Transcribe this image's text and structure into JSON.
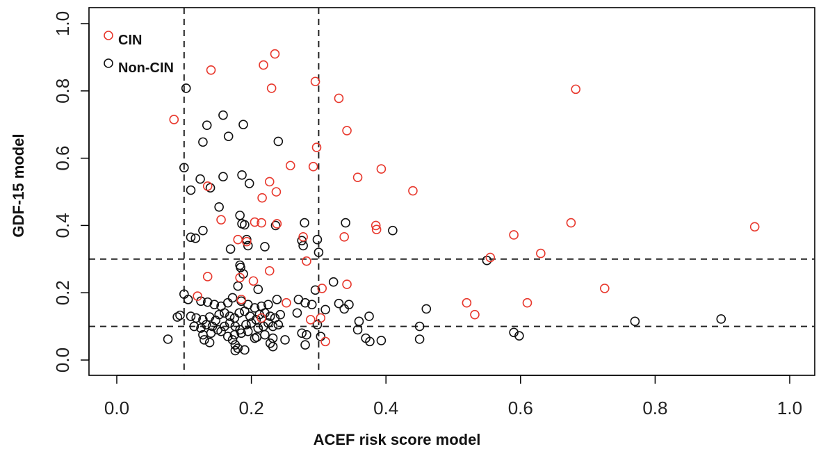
{
  "chart_data": {
    "type": "scatter",
    "xlabel": "ACEF risk score model",
    "ylabel": "GDF-15 model",
    "xlim": [
      -0.02,
      1.04
    ],
    "ylim": [
      -0.05,
      1.04
    ],
    "x_ticks": [
      "0.0",
      "0.2",
      "0.4",
      "0.6",
      "0.8",
      "1.0"
    ],
    "y_ticks": [
      "0.0",
      "0.2",
      "0.4",
      "0.6",
      "0.8",
      "1.0"
    ],
    "grid": false,
    "legend_position": "top-left",
    "reference_lines": {
      "vertical": [
        0.1,
        0.3
      ],
      "horizontal": [
        0.1,
        0.3
      ]
    },
    "series": [
      {
        "name": "CIN",
        "color": "#e8392e",
        "points": [
          [
            0.085,
            0.715
          ],
          [
            0.14,
            0.862
          ],
          [
            0.218,
            0.877
          ],
          [
            0.235,
            0.91
          ],
          [
            0.23,
            0.808
          ],
          [
            0.295,
            0.828
          ],
          [
            0.33,
            0.778
          ],
          [
            0.342,
            0.682
          ],
          [
            0.682,
            0.805
          ],
          [
            0.297,
            0.632
          ],
          [
            0.258,
            0.578
          ],
          [
            0.292,
            0.575
          ],
          [
            0.393,
            0.568
          ],
          [
            0.358,
            0.543
          ],
          [
            0.227,
            0.53
          ],
          [
            0.135,
            0.517
          ],
          [
            0.237,
            0.5
          ],
          [
            0.44,
            0.503
          ],
          [
            0.216,
            0.482
          ],
          [
            0.155,
            0.417
          ],
          [
            0.205,
            0.41
          ],
          [
            0.215,
            0.408
          ],
          [
            0.238,
            0.405
          ],
          [
            0.385,
            0.4
          ],
          [
            0.386,
            0.388
          ],
          [
            0.675,
            0.408
          ],
          [
            0.948,
            0.396
          ],
          [
            0.59,
            0.372
          ],
          [
            0.277,
            0.366
          ],
          [
            0.338,
            0.366
          ],
          [
            0.18,
            0.358
          ],
          [
            0.193,
            0.352
          ],
          [
            0.63,
            0.317
          ],
          [
            0.555,
            0.305
          ],
          [
            0.282,
            0.294
          ],
          [
            0.227,
            0.265
          ],
          [
            0.135,
            0.248
          ],
          [
            0.183,
            0.245
          ],
          [
            0.203,
            0.235
          ],
          [
            0.342,
            0.225
          ],
          [
            0.305,
            0.213
          ],
          [
            0.725,
            0.213
          ],
          [
            0.185,
            0.18
          ],
          [
            0.12,
            0.19
          ],
          [
            0.252,
            0.17
          ],
          [
            0.52,
            0.17
          ],
          [
            0.61,
            0.17
          ],
          [
            0.532,
            0.135
          ],
          [
            0.215,
            0.125
          ],
          [
            0.303,
            0.125
          ],
          [
            0.288,
            0.12
          ],
          [
            0.31,
            0.055
          ]
        ]
      },
      {
        "name": "Non-CIN",
        "color": "#111111",
        "points": [
          [
            0.103,
            0.808
          ],
          [
            0.158,
            0.728
          ],
          [
            0.188,
            0.7
          ],
          [
            0.134,
            0.698
          ],
          [
            0.166,
            0.665
          ],
          [
            0.128,
            0.648
          ],
          [
            0.24,
            0.65
          ],
          [
            0.1,
            0.572
          ],
          [
            0.186,
            0.55
          ],
          [
            0.158,
            0.545
          ],
          [
            0.124,
            0.538
          ],
          [
            0.197,
            0.525
          ],
          [
            0.11,
            0.505
          ],
          [
            0.139,
            0.512
          ],
          [
            0.152,
            0.455
          ],
          [
            0.183,
            0.43
          ],
          [
            0.236,
            0.4
          ],
          [
            0.279,
            0.408
          ],
          [
            0.34,
            0.408
          ],
          [
            0.41,
            0.385
          ],
          [
            0.128,
            0.385
          ],
          [
            0.19,
            0.402
          ],
          [
            0.186,
            0.405
          ],
          [
            0.11,
            0.365
          ],
          [
            0.117,
            0.362
          ],
          [
            0.193,
            0.358
          ],
          [
            0.275,
            0.355
          ],
          [
            0.298,
            0.358
          ],
          [
            0.195,
            0.34
          ],
          [
            0.169,
            0.33
          ],
          [
            0.277,
            0.34
          ],
          [
            0.22,
            0.337
          ],
          [
            0.3,
            0.32
          ],
          [
            0.55,
            0.296
          ],
          [
            0.183,
            0.282
          ],
          [
            0.184,
            0.275
          ],
          [
            0.188,
            0.256
          ],
          [
            0.322,
            0.232
          ],
          [
            0.295,
            0.208
          ],
          [
            0.18,
            0.22
          ],
          [
            0.21,
            0.21
          ],
          [
            0.1,
            0.196
          ],
          [
            0.106,
            0.18
          ],
          [
            0.125,
            0.175
          ],
          [
            0.135,
            0.172
          ],
          [
            0.145,
            0.165
          ],
          [
            0.155,
            0.16
          ],
          [
            0.165,
            0.17
          ],
          [
            0.172,
            0.185
          ],
          [
            0.185,
            0.175
          ],
          [
            0.195,
            0.165
          ],
          [
            0.205,
            0.155
          ],
          [
            0.215,
            0.16
          ],
          [
            0.225,
            0.165
          ],
          [
            0.238,
            0.18
          ],
          [
            0.27,
            0.18
          ],
          [
            0.28,
            0.17
          ],
          [
            0.29,
            0.165
          ],
          [
            0.33,
            0.168
          ],
          [
            0.338,
            0.152
          ],
          [
            0.345,
            0.165
          ],
          [
            0.46,
            0.152
          ],
          [
            0.375,
            0.13
          ],
          [
            0.36,
            0.115
          ],
          [
            0.45,
            0.1
          ],
          [
            0.77,
            0.115
          ],
          [
            0.898,
            0.122
          ],
          [
            0.09,
            0.128
          ],
          [
            0.094,
            0.133
          ],
          [
            0.11,
            0.13
          ],
          [
            0.118,
            0.125
          ],
          [
            0.128,
            0.12
          ],
          [
            0.138,
            0.128
          ],
          [
            0.147,
            0.118
          ],
          [
            0.152,
            0.135
          ],
          [
            0.16,
            0.14
          ],
          [
            0.168,
            0.13
          ],
          [
            0.175,
            0.125
          ],
          [
            0.182,
            0.14
          ],
          [
            0.19,
            0.145
          ],
          [
            0.198,
            0.13
          ],
          [
            0.207,
            0.12
          ],
          [
            0.212,
            0.135
          ],
          [
            0.22,
            0.14
          ],
          [
            0.228,
            0.13
          ],
          [
            0.235,
            0.125
          ],
          [
            0.243,
            0.135
          ],
          [
            0.268,
            0.14
          ],
          [
            0.31,
            0.15
          ],
          [
            0.115,
            0.1
          ],
          [
            0.125,
            0.095
          ],
          [
            0.133,
            0.105
          ],
          [
            0.142,
            0.1
          ],
          [
            0.15,
            0.09
          ],
          [
            0.16,
            0.1
          ],
          [
            0.168,
            0.11
          ],
          [
            0.176,
            0.1
          ],
          [
            0.183,
            0.09
          ],
          [
            0.192,
            0.105
          ],
          [
            0.2,
            0.11
          ],
          [
            0.21,
            0.095
          ],
          [
            0.218,
            0.1
          ],
          [
            0.225,
            0.11
          ],
          [
            0.232,
            0.1
          ],
          [
            0.24,
            0.105
          ],
          [
            0.298,
            0.105
          ],
          [
            0.358,
            0.09
          ],
          [
            0.128,
            0.075
          ],
          [
            0.14,
            0.08
          ],
          [
            0.155,
            0.085
          ],
          [
            0.165,
            0.07
          ],
          [
            0.175,
            0.075
          ],
          [
            0.185,
            0.08
          ],
          [
            0.195,
            0.085
          ],
          [
            0.208,
            0.068
          ],
          [
            0.22,
            0.075
          ],
          [
            0.232,
            0.065
          ],
          [
            0.25,
            0.06
          ],
          [
            0.275,
            0.08
          ],
          [
            0.282,
            0.075
          ],
          [
            0.076,
            0.062
          ],
          [
            0.13,
            0.06
          ],
          [
            0.138,
            0.052
          ],
          [
            0.172,
            0.06
          ],
          [
            0.176,
            0.045
          ],
          [
            0.18,
            0.035
          ],
          [
            0.19,
            0.03
          ],
          [
            0.205,
            0.065
          ],
          [
            0.228,
            0.05
          ],
          [
            0.232,
            0.04
          ],
          [
            0.28,
            0.045
          ],
          [
            0.303,
            0.07
          ],
          [
            0.37,
            0.065
          ],
          [
            0.376,
            0.055
          ],
          [
            0.393,
            0.058
          ],
          [
            0.45,
            0.062
          ],
          [
            0.59,
            0.082
          ],
          [
            0.598,
            0.072
          ],
          [
            0.176,
            0.028
          ]
        ]
      }
    ]
  }
}
